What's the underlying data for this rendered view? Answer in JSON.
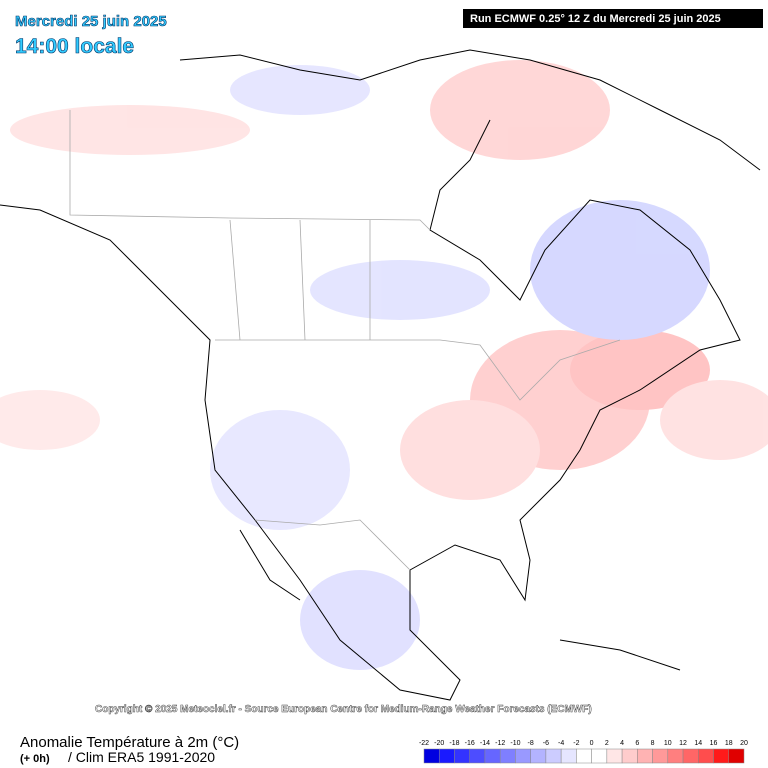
{
  "header": {
    "date": "Mercredi 25 juin 2025",
    "time": "14:00 locale",
    "run": "Run ECMWF 0.25° 12 Z du Mercredi 25 juin 2025"
  },
  "copyright": "Copyright © 2025 Meteociel.fr - Source European Centre for Medium-Range Weather Forecasts (ECMWF)",
  "footer": {
    "title": "Anomalie Température à 2m (°C)",
    "step": "(+ 0h)",
    "clim": "/ Clim ERA5 1991-2020"
  },
  "legend": {
    "ticks": [
      -22,
      -20,
      -18,
      -16,
      -14,
      -12,
      -10,
      -8,
      -6,
      -4,
      -2,
      0,
      2,
      4,
      6,
      8,
      10,
      12,
      14,
      16,
      18,
      20
    ],
    "colors": [
      "#0000e0",
      "#1a1aff",
      "#3333ff",
      "#4d4dff",
      "#6666ff",
      "#7f7fff",
      "#9999ff",
      "#b3b3ff",
      "#ccccff",
      "#e6e6ff",
      "#ffffff",
      "#ffffff",
      "#ffe6e6",
      "#ffcccc",
      "#ffb3b3",
      "#ff9999",
      "#ff7f7f",
      "#ff6666",
      "#ff4d4d",
      "#ff1a1a",
      "#e00000"
    ]
  }
}
